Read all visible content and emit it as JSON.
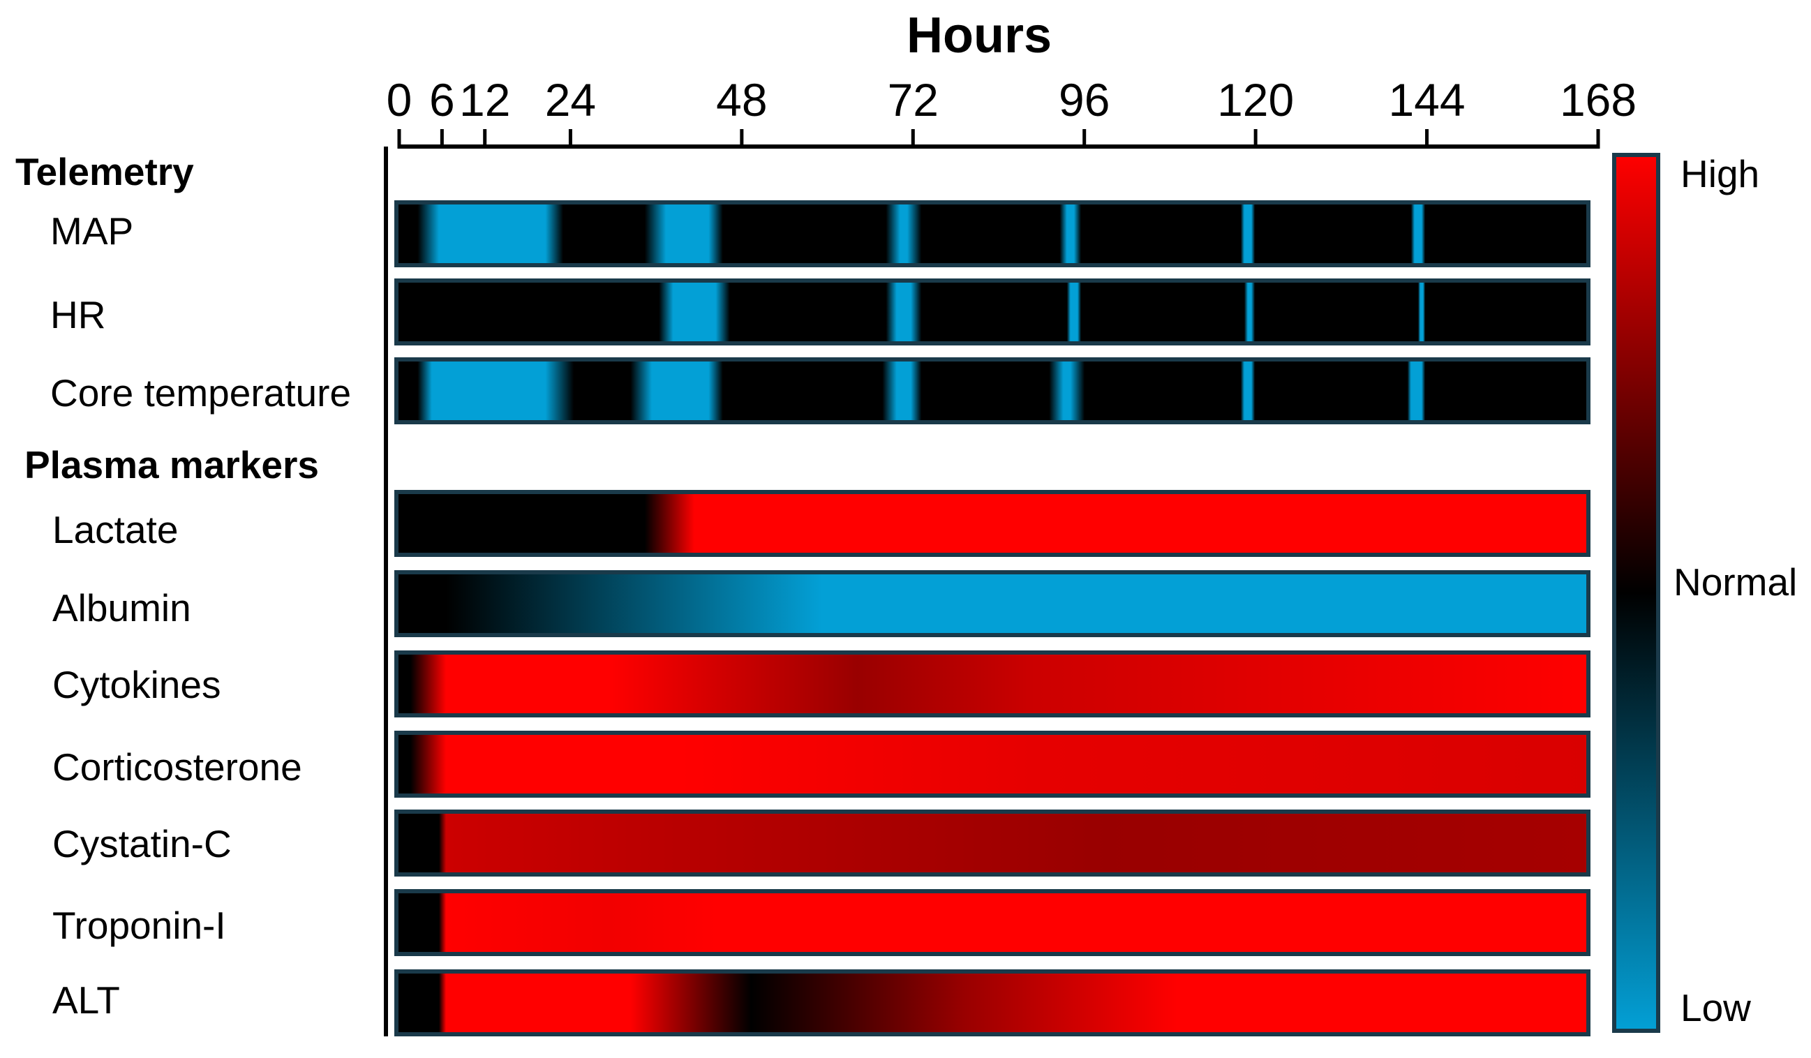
{
  "colors": {
    "high": "#ff0000",
    "normal": "#000000",
    "low": "#03a0d6",
    "frame": "#1a3a4a"
  },
  "chart_data": {
    "type": "heatmap",
    "title": "",
    "xlabel": "Hours",
    "xlim": [
      0,
      168
    ],
    "x_ticks": [
      {
        "value": 0,
        "label": "0"
      },
      {
        "value": 6,
        "label": "6"
      },
      {
        "value": 12,
        "label": "12"
      },
      {
        "value": 24,
        "label": "24"
      },
      {
        "value": 48,
        "label": "48"
      },
      {
        "value": 72,
        "label": "72"
      },
      {
        "value": 96,
        "label": "96"
      },
      {
        "value": 120,
        "label": "120"
      },
      {
        "value": 144,
        "label": "144"
      },
      {
        "value": 168,
        "label": "168"
      }
    ],
    "value_scale": {
      "min": -1,
      "max": 1,
      "labels": {
        "high": "High",
        "normal": "Normal",
        "low": "Low"
      }
    },
    "legend_position": "right",
    "groups": [
      {
        "label": "Telemetry",
        "rows": [
          {
            "label": "MAP",
            "stops": [
              [
                0,
                0
              ],
              [
                3,
                0
              ],
              [
                6,
                -1
              ],
              [
                17,
                -1
              ],
              [
                21,
                -1
              ],
              [
                23.5,
                0
              ],
              [
                35,
                0
              ],
              [
                38,
                -1
              ],
              [
                44,
                -1
              ],
              [
                46,
                0
              ],
              [
                69,
                0
              ],
              [
                71,
                -1
              ],
              [
                72,
                -1
              ],
              [
                74,
                0
              ],
              [
                93.5,
                0
              ],
              [
                94.5,
                -1
              ],
              [
                95.5,
                -1
              ],
              [
                96.5,
                0
              ],
              [
                119,
                0
              ],
              [
                119.5,
                -1
              ],
              [
                120.5,
                -1
              ],
              [
                121,
                0
              ],
              [
                143,
                0
              ],
              [
                143.5,
                -1
              ],
              [
                144.5,
                -1
              ],
              [
                145,
                0
              ],
              [
                168,
                0
              ]
            ]
          },
          {
            "label": "HR",
            "stops": [
              [
                0,
                0
              ],
              [
                37,
                0
              ],
              [
                39,
                -1
              ],
              [
                45,
                -1
              ],
              [
                47,
                0
              ],
              [
                69,
                0
              ],
              [
                70.5,
                -1
              ],
              [
                72.5,
                -1
              ],
              [
                74,
                0
              ],
              [
                94.5,
                0
              ],
              [
                95,
                -1
              ],
              [
                96,
                -1
              ],
              [
                96.5,
                0
              ],
              [
                119.5,
                0
              ],
              [
                120,
                -1
              ],
              [
                120.5,
                -1
              ],
              [
                121,
                0
              ],
              [
                144,
                0
              ],
              [
                144.3,
                -1
              ],
              [
                144.7,
                -1
              ],
              [
                145,
                0
              ],
              [
                168,
                0
              ]
            ]
          },
          {
            "label": "Core temperature",
            "stops": [
              [
                0,
                0
              ],
              [
                3,
                0
              ],
              [
                5,
                -1
              ],
              [
                17,
                -1
              ],
              [
                21,
                -1
              ],
              [
                25,
                0
              ],
              [
                33,
                0
              ],
              [
                36,
                -1
              ],
              [
                44,
                -1
              ],
              [
                46,
                0
              ],
              [
                68.5,
                0
              ],
              [
                70.5,
                -1
              ],
              [
                72.5,
                -1
              ],
              [
                74,
                0
              ],
              [
                92,
                0
              ],
              [
                94,
                -1
              ],
              [
                95,
                -1
              ],
              [
                97,
                0
              ],
              [
                119,
                0
              ],
              [
                119.5,
                -1
              ],
              [
                120.5,
                -1
              ],
              [
                121,
                0
              ],
              [
                142.5,
                0
              ],
              [
                143,
                -1
              ],
              [
                144.5,
                -1
              ],
              [
                145,
                0
              ],
              [
                168,
                0
              ]
            ]
          }
        ]
      },
      {
        "label": "Plasma markers",
        "rows": [
          {
            "label": "Lactate",
            "stops": [
              [
                0,
                0
              ],
              [
                35,
                0
              ],
              [
                42,
                1
              ],
              [
                168,
                1
              ]
            ]
          },
          {
            "label": "Albumin",
            "stops": [
              [
                0,
                0
              ],
              [
                7,
                0
              ],
              [
                60,
                -1
              ],
              [
                168,
                -1
              ]
            ]
          },
          {
            "label": "Cytokines",
            "stops": [
              [
                0,
                0
              ],
              [
                2,
                0
              ],
              [
                7,
                1
              ],
              [
                30,
                1
              ],
              [
                65,
                0.6
              ],
              [
                90,
                0.8
              ],
              [
                130,
                0.9
              ],
              [
                168,
                1
              ]
            ]
          },
          {
            "label": "Corticosterone",
            "stops": [
              [
                0,
                0
              ],
              [
                2,
                0
              ],
              [
                7,
                1
              ],
              [
                40,
                1
              ],
              [
                90,
                0.9
              ],
              [
                168,
                0.85
              ]
            ]
          },
          {
            "label": "Cystatin-C",
            "stops": [
              [
                0,
                0
              ],
              [
                6,
                0
              ],
              [
                7,
                0.8
              ],
              [
                40,
                0.72
              ],
              [
                100,
                0.6
              ],
              [
                168,
                0.65
              ]
            ]
          },
          {
            "label": "Troponin-I",
            "stops": [
              [
                0,
                0
              ],
              [
                6,
                0
              ],
              [
                7,
                1
              ],
              [
                30,
                0.95
              ],
              [
                45,
                1
              ],
              [
                168,
                1
              ]
            ]
          },
          {
            "label": "ALT",
            "stops": [
              [
                0,
                0
              ],
              [
                6,
                0
              ],
              [
                7,
                1
              ],
              [
                33,
                1
              ],
              [
                50,
                0
              ],
              [
                80,
                0.6
              ],
              [
                110,
                1
              ],
              [
                168,
                1
              ]
            ]
          }
        ]
      }
    ]
  }
}
